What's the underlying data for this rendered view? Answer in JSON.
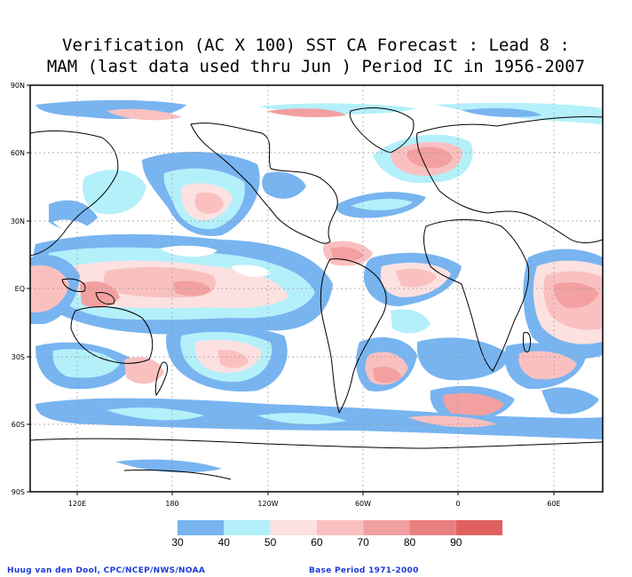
{
  "title": {
    "line1": "Verification (AC X 100) SST CA Forecast : Lead 8 :",
    "line2": "MAM (last data used thru Jun ) Period IC in 1956-2007"
  },
  "axes": {
    "lat_labels": [
      "90N",
      "60N",
      "30N",
      "EQ",
      "30S",
      "60S",
      "90S"
    ],
    "lon_labels": [
      "120E",
      "180",
      "120W",
      "60W",
      "0",
      "60E"
    ]
  },
  "colorbar": {
    "labels": [
      "30",
      "40",
      "50",
      "60",
      "70",
      "80",
      "90"
    ],
    "colors": [
      "#78b4f0",
      "#b4f0fa",
      "#fde1e1",
      "#fac0c0",
      "#f3a0a0",
      "#e98080",
      "#e06060"
    ]
  },
  "footer": {
    "left": "Huug van den Dool, CPC/NCEP/NWS/NOAA",
    "right": "Base Period 1971-2000"
  }
}
